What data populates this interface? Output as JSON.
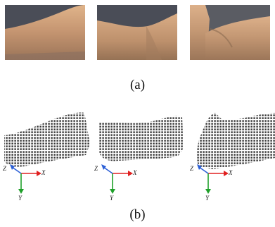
{
  "captions": {
    "a": "(a)",
    "b": "(b)"
  },
  "axes_labels": {
    "x": "X",
    "y": "Y",
    "z": "Z"
  },
  "colors": {
    "x_axis": "#e02020",
    "y_axis": "#1fa02a",
    "z_axis": "#2b5fd6",
    "background_photo": "#4a4d57",
    "skin": "#c79a72",
    "point": "#3a3a3a"
  }
}
